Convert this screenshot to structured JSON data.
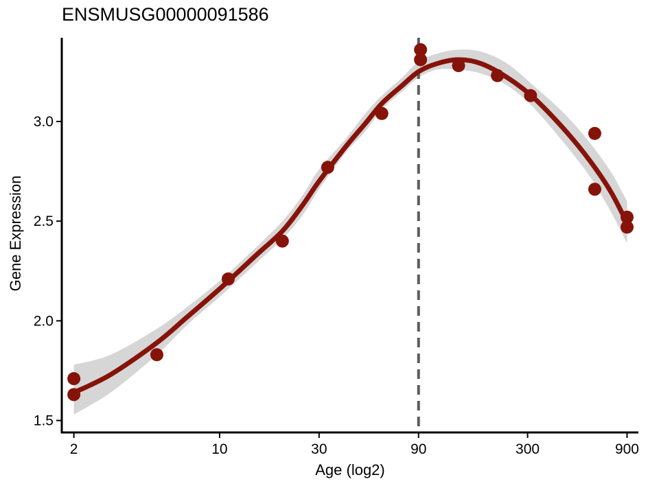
{
  "chart_data": {
    "type": "scatter",
    "title": "ENSMUSG00000091586",
    "xlabel": "Age (log2)",
    "ylabel": "Gene Expression",
    "x_scale": "log2",
    "xlim": [
      1.75,
      1020
    ],
    "ylim": [
      1.44,
      3.42
    ],
    "x_ticks": [
      2,
      10,
      30,
      90,
      300,
      900
    ],
    "x_tick_labels": [
      "2",
      "10",
      "30",
      "90",
      "300",
      "900"
    ],
    "y_ticks": [
      1.5,
      2.0,
      2.5,
      3.0
    ],
    "y_tick_labels": [
      "1.5",
      "2.0",
      "2.5",
      "3.0"
    ],
    "grid": false,
    "vline": {
      "x": 90,
      "style": "dashed"
    },
    "points": [
      {
        "x": 2,
        "y": 1.71
      },
      {
        "x": 2,
        "y": 1.63
      },
      {
        "x": 5,
        "y": 1.83
      },
      {
        "x": 11,
        "y": 2.21
      },
      {
        "x": 20,
        "y": 2.4
      },
      {
        "x": 33,
        "y": 2.77
      },
      {
        "x": 60,
        "y": 3.04
      },
      {
        "x": 92,
        "y": 3.36
      },
      {
        "x": 92,
        "y": 3.31
      },
      {
        "x": 140,
        "y": 3.28
      },
      {
        "x": 215,
        "y": 3.23
      },
      {
        "x": 310,
        "y": 3.13
      },
      {
        "x": 630,
        "y": 2.94
      },
      {
        "x": 630,
        "y": 2.66
      },
      {
        "x": 900,
        "y": 2.52
      },
      {
        "x": 900,
        "y": 2.47
      }
    ],
    "fit_line": [
      {
        "x": 2,
        "y": 1.64
      },
      {
        "x": 3,
        "y": 1.73
      },
      {
        "x": 5,
        "y": 1.89
      },
      {
        "x": 7,
        "y": 2.02
      },
      {
        "x": 10,
        "y": 2.16
      },
      {
        "x": 15,
        "y": 2.33
      },
      {
        "x": 20,
        "y": 2.45
      },
      {
        "x": 25,
        "y": 2.58
      },
      {
        "x": 30,
        "y": 2.7
      },
      {
        "x": 40,
        "y": 2.87
      },
      {
        "x": 50,
        "y": 2.99
      },
      {
        "x": 60,
        "y": 3.09
      },
      {
        "x": 75,
        "y": 3.18
      },
      {
        "x": 90,
        "y": 3.25
      },
      {
        "x": 110,
        "y": 3.29
      },
      {
        "x": 140,
        "y": 3.31
      },
      {
        "x": 180,
        "y": 3.29
      },
      {
        "x": 240,
        "y": 3.22
      },
      {
        "x": 320,
        "y": 3.12
      },
      {
        "x": 450,
        "y": 2.96
      },
      {
        "x": 600,
        "y": 2.8
      },
      {
        "x": 750,
        "y": 2.65
      },
      {
        "x": 900,
        "y": 2.49
      }
    ],
    "ci_lower": [
      1.53,
      1.64,
      1.83,
      1.98,
      2.12,
      2.29,
      2.41,
      2.53,
      2.66,
      2.84,
      2.95,
      3.06,
      3.15,
      3.22,
      3.26,
      3.26,
      3.24,
      3.18,
      3.07,
      2.89,
      2.72,
      2.55,
      2.39
    ],
    "ci_upper": [
      1.78,
      1.83,
      1.96,
      2.07,
      2.2,
      2.37,
      2.5,
      2.63,
      2.76,
      2.91,
      3.04,
      3.13,
      3.22,
      3.3,
      3.34,
      3.36,
      3.35,
      3.29,
      3.18,
      3.04,
      2.89,
      2.75,
      2.6
    ],
    "colors": {
      "points": "#861309",
      "fit_line": "#861309",
      "ribbon": "#d6d6d6",
      "vline": "#5c5c5c",
      "axis": "#000000"
    }
  }
}
